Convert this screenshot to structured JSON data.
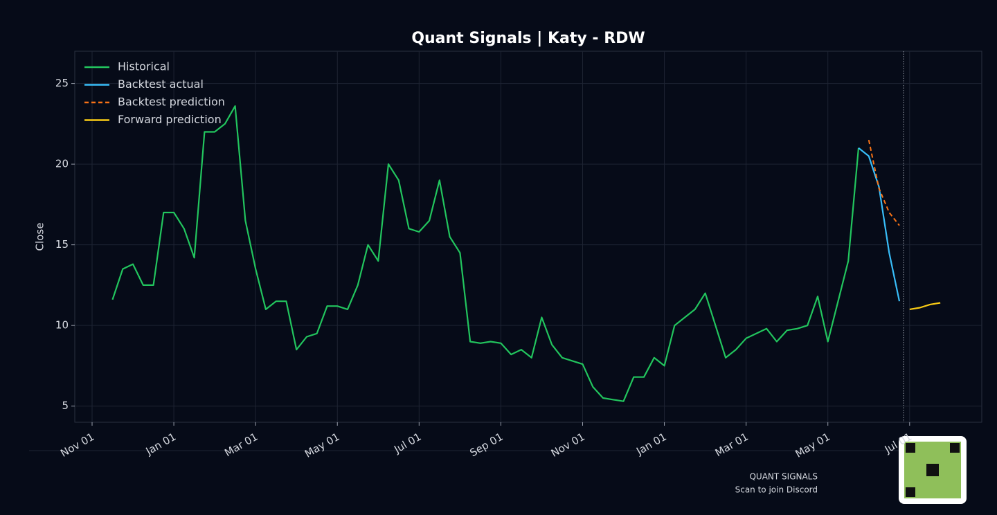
{
  "chart_data": {
    "type": "line",
    "title": "Quant Signals | Katy - RDW",
    "y_label": "Close",
    "categories": [
      "Nov 01",
      null,
      null,
      null,
      null,
      null,
      null,
      null,
      "Jan 01",
      null,
      null,
      null,
      null,
      null,
      null,
      null,
      "Mar 01",
      null,
      null,
      null,
      null,
      null,
      null,
      null,
      "May 01",
      null,
      null,
      null,
      null,
      null,
      null,
      null,
      "Jul 01",
      null,
      null,
      null,
      null,
      null,
      null,
      null,
      "Sep 01",
      null,
      null,
      null,
      null,
      null,
      null,
      null,
      "Nov 01",
      null,
      null,
      null,
      null,
      null,
      null,
      null,
      "Jan 01",
      null,
      null,
      null,
      null,
      null,
      null,
      null,
      "Mar 01",
      null,
      null,
      null,
      null,
      null,
      null,
      null,
      "May 01",
      null,
      null,
      null,
      null,
      null,
      null,
      null,
      "Jul 01",
      null,
      null,
      null
    ],
    "series": [
      {
        "name": "Historical",
        "color": "#22c55e",
        "style": "solid",
        "values": [
          null,
          null,
          11.6,
          13.5,
          13.8,
          12.5,
          12.5,
          17.0,
          17.0,
          16.0,
          14.2,
          22.0,
          22.0,
          22.5,
          23.6,
          16.5,
          13.5,
          11.0,
          11.5,
          11.5,
          8.5,
          9.3,
          9.5,
          11.2,
          11.2,
          11.0,
          12.5,
          15.0,
          14.0,
          20.0,
          19.0,
          16.0,
          15.8,
          16.5,
          19.0,
          15.5,
          14.5,
          9.0,
          8.9,
          9.0,
          8.9,
          8.2,
          8.5,
          8.0,
          10.5,
          8.8,
          8.0,
          7.8,
          7.6,
          6.2,
          5.5,
          5.4,
          5.3,
          6.8,
          6.8,
          8.0,
          7.5,
          10.0,
          10.5,
          11.0,
          12.0,
          10.0,
          8.0,
          8.5,
          9.2,
          9.5,
          9.8,
          9.0,
          9.7,
          9.8,
          10.0,
          11.8,
          9.0,
          11.5,
          14.0,
          21.0,
          null,
          null,
          null,
          null,
          null,
          null,
          null,
          null
        ]
      },
      {
        "name": "Backtest actual",
        "color": "#38bdf8",
        "style": "solid",
        "values": [
          null,
          null,
          null,
          null,
          null,
          null,
          null,
          null,
          null,
          null,
          null,
          null,
          null,
          null,
          null,
          null,
          null,
          null,
          null,
          null,
          null,
          null,
          null,
          null,
          null,
          null,
          null,
          null,
          null,
          null,
          null,
          null,
          null,
          null,
          null,
          null,
          null,
          null,
          null,
          null,
          null,
          null,
          null,
          null,
          null,
          null,
          null,
          null,
          null,
          null,
          null,
          null,
          null,
          null,
          null,
          null,
          null,
          null,
          null,
          null,
          null,
          null,
          null,
          null,
          null,
          null,
          null,
          null,
          null,
          null,
          null,
          null,
          null,
          null,
          null,
          21.0,
          20.5,
          18.6,
          14.5,
          11.5,
          null,
          null,
          null,
          null
        ]
      },
      {
        "name": "Backtest prediction",
        "color": "#f97316",
        "style": "dashed",
        "values": [
          null,
          null,
          null,
          null,
          null,
          null,
          null,
          null,
          null,
          null,
          null,
          null,
          null,
          null,
          null,
          null,
          null,
          null,
          null,
          null,
          null,
          null,
          null,
          null,
          null,
          null,
          null,
          null,
          null,
          null,
          null,
          null,
          null,
          null,
          null,
          null,
          null,
          null,
          null,
          null,
          null,
          null,
          null,
          null,
          null,
          null,
          null,
          null,
          null,
          null,
          null,
          null,
          null,
          null,
          null,
          null,
          null,
          null,
          null,
          null,
          null,
          null,
          null,
          null,
          null,
          null,
          null,
          null,
          null,
          null,
          null,
          null,
          null,
          null,
          null,
          null,
          21.5,
          18.5,
          17.0,
          16.2,
          null,
          null,
          null,
          null
        ]
      },
      {
        "name": "Forward prediction",
        "color": "#facc15",
        "style": "solid",
        "values": [
          null,
          null,
          null,
          null,
          null,
          null,
          null,
          null,
          null,
          null,
          null,
          null,
          null,
          null,
          null,
          null,
          null,
          null,
          null,
          null,
          null,
          null,
          null,
          null,
          null,
          null,
          null,
          null,
          null,
          null,
          null,
          null,
          null,
          null,
          null,
          null,
          null,
          null,
          null,
          null,
          null,
          null,
          null,
          null,
          null,
          null,
          null,
          null,
          null,
          null,
          null,
          null,
          null,
          null,
          null,
          null,
          null,
          null,
          null,
          null,
          null,
          null,
          null,
          null,
          null,
          null,
          null,
          null,
          null,
          null,
          null,
          null,
          null,
          null,
          null,
          null,
          null,
          null,
          null,
          null,
          11.0,
          11.1,
          11.3,
          11.4
        ]
      }
    ],
    "ylim": [
      4,
      27
    ],
    "yticks": [
      5,
      10,
      15,
      20,
      25
    ],
    "grid": true,
    "legend": "upper left",
    "footer": {
      "brand": "QUANT SIGNALS",
      "caption": "Scan to join Discord"
    }
  }
}
